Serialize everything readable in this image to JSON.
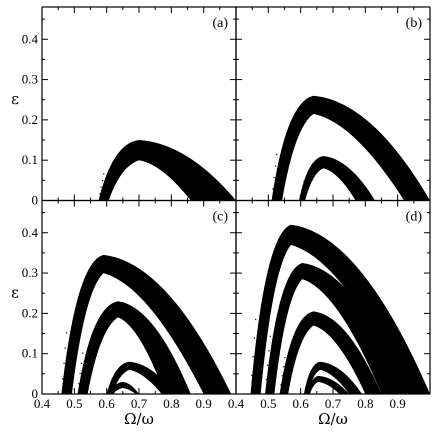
{
  "chart_data": [
    {
      "panel": "a",
      "type": "area",
      "label": "(a)",
      "xlabel": "",
      "ylabel": "ε",
      "xlim": [
        0.4,
        1.0
      ],
      "ylim": [
        0,
        0.48
      ],
      "xticks": [],
      "yticks": [
        "0",
        "0.1",
        "0.2",
        "0.3",
        "0.4"
      ],
      "regions": [
        {
          "start": 0.575,
          "apex_x": 0.7,
          "apex_upper": 0.15,
          "apex_lower": 0.1,
          "end_lower": 0.86,
          "end_upper": 1.0
        }
      ]
    },
    {
      "panel": "b",
      "type": "area",
      "label": "(b)",
      "xlabel": "",
      "ylabel": "",
      "xlim": [
        0.4,
        1.0
      ],
      "ylim": [
        0,
        0.48
      ],
      "xticks": [],
      "yticks": [],
      "regions": [
        {
          "start": 0.51,
          "apex_x": 0.64,
          "apex_upper": 0.26,
          "apex_lower": 0.215,
          "end_lower": 0.92,
          "end_upper": 1.0
        },
        {
          "start": 0.595,
          "apex_x": 0.67,
          "apex_upper": 0.11,
          "apex_lower": 0.08,
          "end_lower": 0.77,
          "end_upper": 0.83
        }
      ]
    },
    {
      "panel": "c",
      "type": "area",
      "label": "(c)",
      "xlabel": "Ω/ω",
      "ylabel": "ε",
      "xlim": [
        0.4,
        1.0
      ],
      "ylim": [
        0,
        0.48
      ],
      "xticks": [
        "0.4",
        "0.5",
        "0.6",
        "0.7",
        "0.8",
        "0.9"
      ],
      "yticks": [
        "0",
        "0.1",
        "0.2",
        "0.3",
        "0.4"
      ],
      "regions": [
        {
          "start": 0.46,
          "apex_x": 0.59,
          "apex_upper": 0.345,
          "apex_lower": 0.3,
          "end_lower": 0.9,
          "end_upper": 0.985
        },
        {
          "start": 0.51,
          "apex_x": 0.635,
          "apex_upper": 0.23,
          "apex_lower": 0.19,
          "end_lower": 0.78,
          "end_upper": 0.86
        },
        {
          "start": 0.6,
          "apex_x": 0.67,
          "apex_upper": 0.08,
          "apex_lower": 0.06,
          "end_lower": 0.77,
          "end_upper": 0.81
        },
        {
          "start": 0.61,
          "apex_x": 0.65,
          "apex_upper": 0.03,
          "apex_lower": 0.015,
          "end_lower": 0.69,
          "end_upper": 0.7
        }
      ]
    },
    {
      "panel": "d",
      "type": "area",
      "label": "(d)",
      "xlabel": "Ω/ω",
      "ylabel": "",
      "xlim": [
        0.4,
        1.0
      ],
      "ylim": [
        0,
        0.48
      ],
      "xticks": [
        "0.4",
        "0.5",
        "0.6",
        "0.7",
        "0.8",
        "0.9"
      ],
      "yticks": [],
      "regions": [
        {
          "start": 0.445,
          "apex_x": 0.57,
          "apex_upper": 0.42,
          "apex_lower": 0.37,
          "end_lower": 0.93,
          "end_upper": 1.0
        },
        {
          "start": 0.49,
          "apex_x": 0.605,
          "apex_upper": 0.325,
          "apex_lower": 0.285,
          "end_lower": 0.85,
          "end_upper": 0.93
        },
        {
          "start": 0.535,
          "apex_x": 0.64,
          "apex_upper": 0.205,
          "apex_lower": 0.17,
          "end_lower": 0.8,
          "end_upper": 0.85
        },
        {
          "start": 0.61,
          "apex_x": 0.66,
          "apex_upper": 0.08,
          "apex_lower": 0.06,
          "end_lower": 0.75,
          "end_upper": 0.79
        },
        {
          "start": 0.62,
          "apex_x": 0.655,
          "apex_upper": 0.045,
          "apex_lower": 0.03,
          "end_lower": 0.72,
          "end_upper": 0.75
        }
      ]
    }
  ]
}
